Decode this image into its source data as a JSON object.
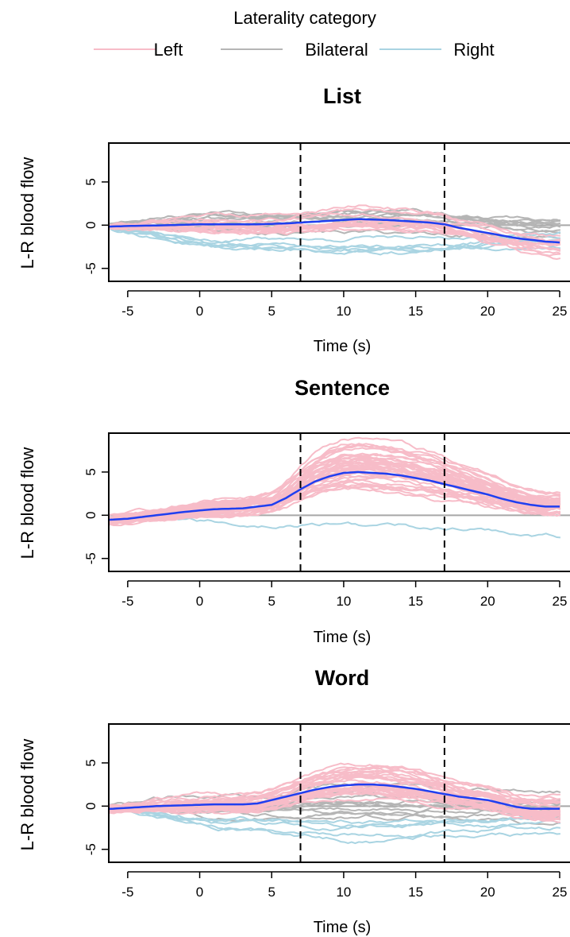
{
  "legend": {
    "title": "Laterality category",
    "placement": "top",
    "entries": [
      {
        "label": "Left",
        "color": "#f7bcc8"
      },
      {
        "label": "Bilateral",
        "color": "#b5b5b5"
      },
      {
        "label": "Right",
        "color": "#a9d4e2"
      }
    ]
  },
  "colors": {
    "mean_line": "#1f3ff0",
    "zero_line": "#a8a8a8",
    "stimulus_markers": "#000000"
  },
  "chart_data": [
    {
      "type": "line",
      "title": "List",
      "xlabel": "Time (s)",
      "ylabel": "L-R blood flow",
      "xlim": [
        -7.5,
        25
      ],
      "ylim": [
        -6.5,
        9.5
      ],
      "xticks": [
        -5,
        0,
        5,
        10,
        15,
        20,
        25
      ],
      "yticks": [
        -5,
        0,
        5
      ],
      "vlines": [
        7,
        17
      ],
      "hline": 0,
      "mean": {
        "x": [
          -7,
          -5,
          -2,
          0,
          2,
          4,
          6,
          7,
          8,
          10,
          11,
          13,
          15,
          16,
          17,
          18,
          20,
          22,
          24,
          25
        ],
        "y": [
          -0.2,
          -0.1,
          0.0,
          0.1,
          0.1,
          0.1,
          0.2,
          0.3,
          0.4,
          0.6,
          0.7,
          0.6,
          0.4,
          0.3,
          0.1,
          -0.3,
          -0.9,
          -1.5,
          -1.9,
          -2.0
        ]
      },
      "group_counts": {
        "Left": 14,
        "Bilateral": 10,
        "Right": 6
      }
    },
    {
      "type": "line",
      "title": "Sentence",
      "xlabel": "Time (s)",
      "ylabel": "L-R blood flow",
      "xlim": [
        -7.5,
        25
      ],
      "ylim": [
        -6.5,
        9.5
      ],
      "xticks": [
        -5,
        0,
        5,
        10,
        15,
        20,
        25
      ],
      "yticks": [
        -5,
        0,
        5
      ],
      "vlines": [
        7,
        17
      ],
      "hline": 0,
      "mean": {
        "x": [
          -7,
          -5,
          -3,
          -1,
          1,
          3,
          5,
          6,
          7,
          8,
          9,
          10,
          11,
          12,
          13,
          14,
          15,
          16,
          17,
          18,
          19,
          20,
          21,
          22,
          23,
          24,
          25
        ],
        "y": [
          -0.6,
          -0.4,
          0.0,
          0.4,
          0.7,
          0.8,
          1.2,
          2.0,
          3.0,
          3.9,
          4.5,
          4.9,
          5.0,
          4.9,
          4.8,
          4.6,
          4.3,
          4.0,
          3.6,
          3.2,
          2.8,
          2.4,
          1.9,
          1.5,
          1.2,
          1.0,
          1.0
        ]
      },
      "group_counts": {
        "Left": 40,
        "Bilateral": 0,
        "Right": 1
      }
    },
    {
      "type": "line",
      "title": "Word",
      "xlabel": "Time (s)",
      "ylabel": "L-R blood flow",
      "xlim": [
        -7.5,
        25
      ],
      "ylim": [
        -6.5,
        9.5
      ],
      "xticks": [
        -5,
        0,
        5,
        10,
        15,
        20,
        25
      ],
      "yticks": [
        -5,
        0,
        5
      ],
      "vlines": [
        7,
        17
      ],
      "hline": 0,
      "mean": {
        "x": [
          -7,
          -5,
          -3,
          -1,
          1,
          3,
          4,
          5,
          6,
          7,
          8,
          9,
          10,
          11,
          12,
          13,
          14,
          15,
          16,
          17,
          18,
          19,
          20,
          21,
          22,
          23,
          24,
          25
        ],
        "y": [
          -0.4,
          -0.2,
          0.0,
          0.1,
          0.2,
          0.2,
          0.3,
          0.7,
          1.1,
          1.5,
          1.9,
          2.2,
          2.4,
          2.5,
          2.5,
          2.4,
          2.2,
          2.0,
          1.7,
          1.4,
          1.1,
          0.9,
          0.7,
          0.3,
          -0.1,
          -0.3,
          -0.3,
          -0.3
        ]
      },
      "group_counts": {
        "Left": 30,
        "Bilateral": 10,
        "Right": 5
      }
    }
  ]
}
